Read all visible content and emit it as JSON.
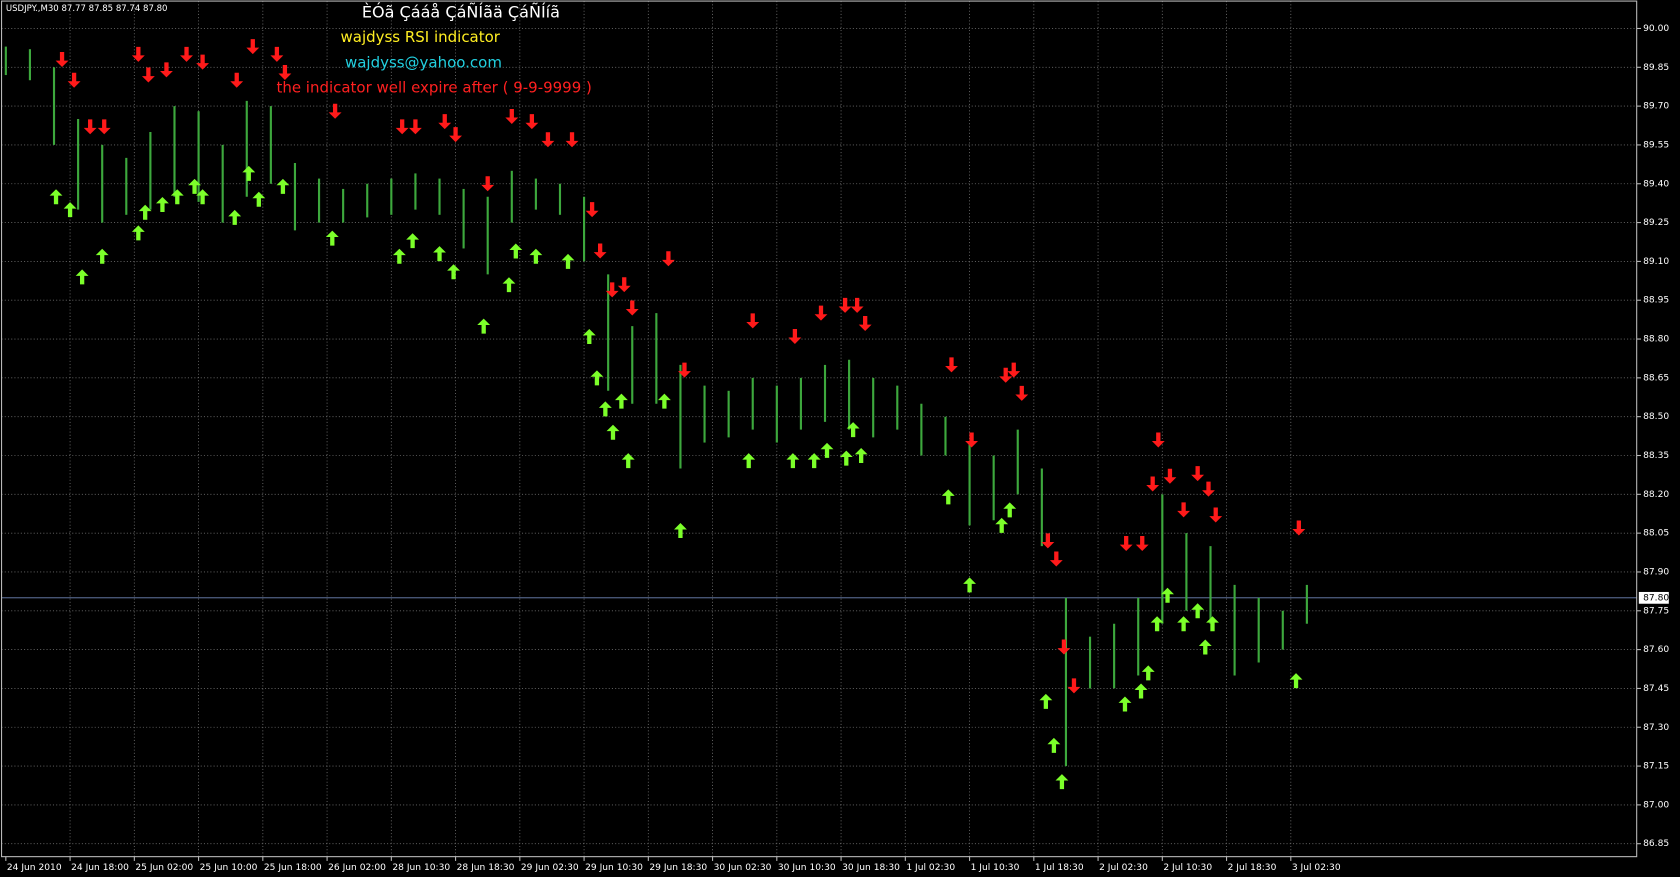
{
  "chart_data": {
    "type": "price-bars",
    "symbol_header": "USDJPY.,M30  87.77 87.85 87.74 87.80",
    "title": "ÈÓã Çááå ÇáÑÍãä ÇáÑÍíã",
    "subtitle": "wajdyss RSI indicator",
    "email": "wajdyss@yahoo.com",
    "annotation": "the indicator well expire after ( 9-9-9999 )",
    "color": "#3da83d",
    "grid": true,
    "xlim": [
      0,
      406
    ],
    "ylim": [
      86.8,
      90.11
    ],
    "yticks": [
      {
        "value": 90,
        "label": "90.00"
      },
      89.85,
      {
        "value": 89.7,
        "label": "89.70"
      },
      89.55,
      {
        "value": 89.4,
        "label": "89.40"
      },
      89.25,
      {
        "value": 89.1,
        "label": "89.10"
      },
      88.95,
      {
        "value": 88.8,
        "label": "88.80"
      },
      88.65,
      {
        "value": 88.5,
        "label": "88.50"
      },
      88.35,
      {
        "value": 88.2,
        "label": "88.20"
      },
      88.05,
      {
        "value": 87.9,
        "label": "87.90"
      },
      87.75,
      {
        "value": 87.6,
        "label": "87.60"
      },
      87.45,
      {
        "value": 87.3,
        "label": "87.30"
      },
      87.15,
      {
        "value": 87,
        "label": "87.00"
      },
      86.85
    ],
    "xticks": [
      {
        "value": 0,
        "label": "24 Jun 2010"
      },
      {
        "value": 16,
        "label": "24 Jun 18:00"
      },
      {
        "value": 32,
        "label": "25 Jun 02:00"
      },
      {
        "value": 48,
        "label": "25 Jun 10:00"
      },
      {
        "value": 64,
        "label": "25 Jun 18:00"
      },
      {
        "value": 80,
        "label": "26 Jun 02:00"
      },
      {
        "value": 96,
        "label": "28 Jun 10:30"
      },
      {
        "value": 112,
        "label": "28 Jun 18:30"
      },
      {
        "value": 128,
        "label": "29 Jun 02:30"
      },
      {
        "value": 144,
        "label": "29 Jun 10:30"
      },
      {
        "value": 160,
        "label": "29 Jun 18:30"
      },
      {
        "value": 176,
        "label": "30 Jun 02:30"
      },
      {
        "value": 192,
        "label": "30 Jun 10:30"
      },
      {
        "value": 208,
        "label": "30 Jun 18:30"
      },
      {
        "value": 224,
        "label": "1 Jul 02:30"
      },
      {
        "value": 240,
        "label": "1 Jul 10:30"
      },
      {
        "value": 256,
        "label": "1 Jul 18:30"
      },
      {
        "value": 272,
        "label": "2 Jul 02:30"
      },
      {
        "value": 288,
        "label": "2 Jul 10:30"
      },
      {
        "value": 304,
        "label": "2 Jul 18:30"
      },
      {
        "value": 320,
        "label": "3 Jul 02:30"
      }
    ],
    "current_price": {
      "value": 87.8,
      "label": "87.80"
    },
    "x": [
      0,
      6,
      12,
      18,
      24,
      30,
      36,
      42,
      48,
      54,
      60,
      66,
      72,
      78,
      84,
      90,
      96,
      102,
      108,
      114,
      120,
      126,
      132,
      138,
      144,
      150,
      156,
      162,
      168,
      174,
      180,
      186,
      192,
      198,
      204,
      210,
      216,
      222,
      228,
      234,
      240,
      246,
      252,
      258,
      264,
      270,
      276,
      282,
      288,
      294,
      300,
      306,
      312,
      318,
      324
    ],
    "high": [
      89.93,
      89.92,
      89.85,
      89.65,
      89.55,
      89.5,
      89.6,
      89.7,
      89.68,
      89.55,
      89.72,
      89.7,
      89.48,
      89.42,
      89.38,
      89.4,
      89.42,
      89.44,
      89.42,
      89.38,
      89.35,
      89.45,
      89.42,
      89.4,
      89.35,
      89.05,
      88.85,
      88.9,
      88.7,
      88.62,
      88.6,
      88.65,
      88.62,
      88.65,
      88.7,
      88.72,
      88.65,
      88.62,
      88.55,
      88.5,
      88.4,
      88.35,
      88.45,
      88.3,
      87.8,
      87.65,
      87.7,
      87.8,
      88.2,
      88.05,
      88.0,
      87.85,
      87.8,
      87.75,
      87.85
    ],
    "low": [
      89.82,
      89.8,
      89.55,
      89.3,
      89.25,
      89.28,
      89.3,
      89.35,
      89.33,
      89.25,
      89.35,
      89.4,
      89.22,
      89.25,
      89.25,
      89.27,
      89.28,
      89.3,
      89.28,
      89.15,
      89.05,
      89.25,
      89.3,
      89.28,
      89.1,
      88.6,
      88.55,
      88.55,
      88.3,
      88.4,
      88.42,
      88.45,
      88.4,
      88.45,
      88.48,
      88.45,
      88.42,
      88.45,
      88.35,
      88.35,
      88.08,
      88.1,
      88.2,
      88.0,
      87.15,
      87.45,
      87.45,
      87.5,
      87.7,
      87.75,
      87.7,
      87.5,
      87.55,
      87.6,
      87.7
    ],
    "sell_signals": {
      "color": "#ff1a1a",
      "x": [
        14,
        17,
        21,
        24.5,
        33,
        35.5,
        40,
        45,
        49,
        57.5,
        61.5,
        67.5,
        69.5,
        82,
        98.7,
        102,
        109.3,
        112,
        120,
        126,
        131,
        135,
        141,
        146,
        148,
        151,
        154,
        156,
        165,
        169,
        186,
        196.5,
        203,
        209,
        212,
        214,
        235.5,
        240.5,
        249,
        251,
        253,
        259.5,
        261.6,
        263.5,
        266,
        279,
        283,
        285.6,
        287,
        289.9,
        293.3,
        296.8,
        299.5,
        301.3,
        322
      ],
      "values": [
        89.88,
        89.8,
        89.62,
        89.62,
        89.9,
        89.82,
        89.84,
        89.9,
        89.87,
        89.8,
        89.93,
        89.9,
        89.83,
        89.68,
        89.62,
        89.62,
        89.64,
        89.59,
        89.4,
        89.66,
        89.64,
        89.57,
        89.57,
        89.3,
        89.14,
        88.99,
        89.01,
        88.92,
        89.11,
        88.68,
        88.87,
        88.81,
        88.9,
        88.93,
        88.93,
        88.86,
        88.7,
        88.41,
        88.66,
        88.68,
        88.59,
        88.02,
        87.95,
        87.61,
        87.46,
        88.01,
        88.01,
        88.24,
        88.41,
        88.27,
        88.14,
        88.28,
        88.22,
        88.12,
        88.07
      ]
    },
    "buy_signals": {
      "color": "#7cff2a",
      "x": [
        12.5,
        16,
        19,
        24,
        33,
        34.7,
        39,
        42.7,
        47,
        49,
        57,
        60.5,
        63,
        69,
        81.3,
        98,
        101.3,
        108,
        111.5,
        119,
        125.3,
        127,
        132,
        140,
        145.3,
        147.2,
        149.3,
        151.2,
        153.3,
        155,
        164,
        168,
        185,
        196,
        201.3,
        204.5,
        209.3,
        211,
        213,
        234.7,
        240,
        248,
        250,
        259,
        261,
        263,
        278.7,
        282.7,
        284.5,
        286.7,
        289.3,
        293.3,
        296.8,
        298.7,
        300.5,
        321.3
      ],
      "values": [
        89.35,
        89.3,
        89.04,
        89.12,
        89.21,
        89.29,
        89.32,
        89.35,
        89.39,
        89.35,
        89.27,
        89.44,
        89.34,
        89.39,
        89.19,
        89.12,
        89.18,
        89.13,
        89.06,
        88.85,
        89.01,
        89.14,
        89.12,
        89.1,
        88.81,
        88.65,
        88.53,
        88.44,
        88.56,
        88.33,
        88.56,
        88.06,
        88.33,
        88.33,
        88.33,
        88.37,
        88.34,
        88.45,
        88.35,
        88.19,
        87.85,
        88.08,
        88.14,
        87.4,
        87.23,
        87.09,
        87.39,
        87.44,
        87.51,
        87.7,
        87.81,
        87.7,
        87.75,
        87.61,
        87.7,
        87.48
      ]
    }
  }
}
